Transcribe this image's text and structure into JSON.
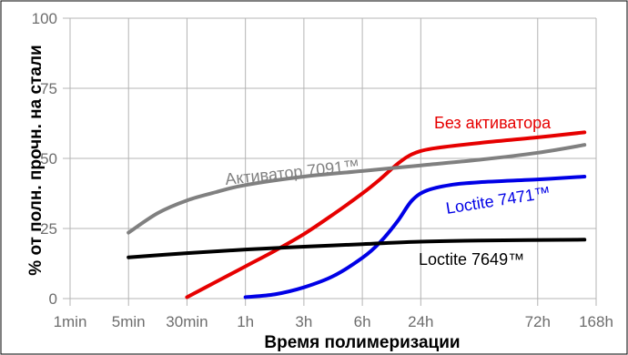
{
  "chart_data": {
    "type": "line",
    "title": "",
    "xlabel": "Время полимеризации",
    "ylabel": "% от полн. прочн. на стали",
    "x_ticks": [
      "1min",
      "5min",
      "30min",
      "1h",
      "3h",
      "6h",
      "24h",
      "72h",
      "168h"
    ],
    "x_tick_positions": [
      0,
      1,
      2,
      3,
      4,
      5,
      6,
      8,
      9
    ],
    "ylim": [
      0,
      100
    ],
    "y_ticks": [
      0,
      25,
      50,
      75,
      100
    ],
    "grid": true,
    "series": [
      {
        "name": "Без активатора",
        "color": "#e60000",
        "label_color": "#e60000",
        "points": [
          [
            2.0,
            0.5
          ],
          [
            2.5,
            6
          ],
          [
            3.0,
            11.5
          ],
          [
            3.5,
            17
          ],
          [
            4.0,
            23
          ],
          [
            4.5,
            30
          ],
          [
            5.0,
            37.5
          ],
          [
            5.3,
            42.5
          ],
          [
            5.6,
            48
          ],
          [
            5.85,
            51.5
          ],
          [
            6.2,
            53.5
          ],
          [
            7.0,
            55.5
          ],
          [
            8.0,
            57.5
          ],
          [
            8.8,
            59.3
          ]
        ]
      },
      {
        "name": "Loctite 7471™",
        "color": "#0000e6",
        "label_color": "#0000e6",
        "points": [
          [
            3.0,
            0.5
          ],
          [
            3.5,
            1.5
          ],
          [
            4.0,
            4
          ],
          [
            4.5,
            8
          ],
          [
            5.0,
            14.5
          ],
          [
            5.3,
            20
          ],
          [
            5.6,
            27.5
          ],
          [
            5.85,
            35
          ],
          [
            6.1,
            38.5
          ],
          [
            6.5,
            40.5
          ],
          [
            7.0,
            41.5
          ],
          [
            8.0,
            42.5
          ],
          [
            8.8,
            43.5
          ]
        ]
      },
      {
        "name": "Активатор 7091™",
        "color": "#808080",
        "label_color": "#808080",
        "points": [
          [
            1.0,
            23.5
          ],
          [
            1.5,
            30.5
          ],
          [
            2.0,
            35
          ],
          [
            2.5,
            38
          ],
          [
            3.0,
            40.5
          ],
          [
            4.0,
            43.5
          ],
          [
            5.0,
            45.5
          ],
          [
            6.0,
            47.5
          ],
          [
            7.0,
            49.5
          ],
          [
            8.0,
            52
          ],
          [
            8.8,
            54.8
          ]
        ]
      },
      {
        "name": "Loctite 7649™",
        "color": "#000000",
        "label_color": "#000000",
        "points": [
          [
            1.0,
            14.7
          ],
          [
            2.0,
            16.2
          ],
          [
            3.0,
            17.5
          ],
          [
            4.0,
            18.5
          ],
          [
            5.0,
            19.4
          ],
          [
            6.0,
            20.3
          ],
          [
            7.0,
            20.7
          ],
          [
            8.8,
            21
          ]
        ]
      }
    ]
  }
}
